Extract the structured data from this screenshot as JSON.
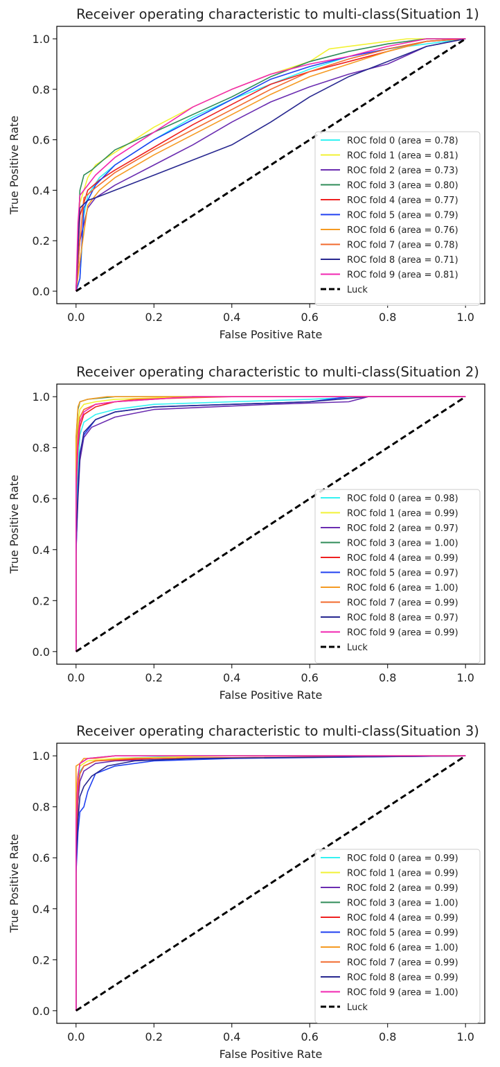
{
  "chart_data": [
    {
      "type": "line",
      "title": "Receiver operating characteristic to multi-class(Situation 1)",
      "xlabel": "False Positive Rate",
      "ylabel": "True Positive Rate",
      "xlim": [
        0,
        1
      ],
      "ylim": [
        0,
        1
      ],
      "xticks": [
        "0.0",
        "0.2",
        "0.4",
        "0.6",
        "0.8",
        "1.0"
      ],
      "yticks": [
        "0.0",
        "0.2",
        "0.4",
        "0.6",
        "0.8",
        "1.0"
      ],
      "legend_position": "lower-right",
      "grid": false,
      "series": [
        {
          "name": "ROC fold 0 (area = 0.78)",
          "color": "#33f2f2",
          "x": [
            0,
            0.01,
            0.02,
            0.03,
            0.06,
            0.1,
            0.2,
            0.3,
            0.4,
            0.5,
            0.6,
            0.7,
            0.8,
            0.9,
            1.0
          ],
          "y": [
            0,
            0.05,
            0.3,
            0.38,
            0.45,
            0.5,
            0.6,
            0.69,
            0.76,
            0.82,
            0.88,
            0.93,
            0.96,
            0.98,
            1.0
          ]
        },
        {
          "name": "ROC fold 1 (area = 0.81)",
          "color": "#f2f233",
          "x": [
            0,
            0.01,
            0.03,
            0.05,
            0.1,
            0.2,
            0.3,
            0.4,
            0.5,
            0.6,
            0.65,
            0.75,
            0.85,
            1.0
          ],
          "y": [
            0,
            0.35,
            0.45,
            0.5,
            0.55,
            0.65,
            0.73,
            0.8,
            0.86,
            0.91,
            0.96,
            0.98,
            1.0,
            1.0
          ]
        },
        {
          "name": "ROC fold 2 (area = 0.73)",
          "color": "#6a2cb0",
          "x": [
            0,
            0.01,
            0.03,
            0.05,
            0.1,
            0.2,
            0.3,
            0.4,
            0.5,
            0.6,
            0.7,
            0.8,
            0.9,
            1.0
          ],
          "y": [
            0,
            0.2,
            0.33,
            0.37,
            0.42,
            0.5,
            0.58,
            0.67,
            0.75,
            0.81,
            0.86,
            0.9,
            0.97,
            1.0
          ]
        },
        {
          "name": "ROC fold 3 (area = 0.80)",
          "color": "#2e8b57",
          "x": [
            0,
            0.01,
            0.02,
            0.04,
            0.1,
            0.2,
            0.3,
            0.4,
            0.5,
            0.6,
            0.7,
            0.8,
            0.9,
            1.0
          ],
          "y": [
            0,
            0.4,
            0.46,
            0.48,
            0.56,
            0.63,
            0.7,
            0.77,
            0.85,
            0.91,
            0.95,
            0.98,
            1.0,
            1.0
          ]
        },
        {
          "name": "ROC fold 4 (area = 0.77)",
          "color": "#ee2020",
          "x": [
            0,
            0.01,
            0.03,
            0.06,
            0.1,
            0.2,
            0.3,
            0.4,
            0.5,
            0.6,
            0.7,
            0.8,
            0.9,
            1.0
          ],
          "y": [
            0,
            0.3,
            0.4,
            0.44,
            0.48,
            0.57,
            0.66,
            0.74,
            0.82,
            0.87,
            0.91,
            0.95,
            0.99,
            1.0
          ]
        },
        {
          "name": "ROC fold 5 (area = 0.79)",
          "color": "#1f3ff0",
          "x": [
            0,
            0.01,
            0.02,
            0.05,
            0.1,
            0.2,
            0.3,
            0.4,
            0.5,
            0.6,
            0.7,
            0.8,
            0.9,
            1.0
          ],
          "y": [
            0,
            0.05,
            0.33,
            0.42,
            0.5,
            0.6,
            0.68,
            0.76,
            0.84,
            0.89,
            0.93,
            0.96,
            0.99,
            1.0
          ]
        },
        {
          "name": "ROC fold 6 (area = 0.76)",
          "color": "#f59a22",
          "x": [
            0,
            0.01,
            0.03,
            0.06,
            0.1,
            0.2,
            0.3,
            0.4,
            0.5,
            0.6,
            0.7,
            0.8,
            0.9,
            1.0
          ],
          "y": [
            0,
            0.12,
            0.34,
            0.4,
            0.45,
            0.54,
            0.62,
            0.7,
            0.78,
            0.85,
            0.9,
            0.95,
            0.99,
            1.0
          ]
        },
        {
          "name": "ROC fold 7 (area = 0.78)",
          "color": "#f26a2c",
          "x": [
            0,
            0.01,
            0.02,
            0.05,
            0.1,
            0.2,
            0.3,
            0.4,
            0.5,
            0.6,
            0.7,
            0.8,
            0.9,
            1.0
          ],
          "y": [
            0,
            0.2,
            0.37,
            0.41,
            0.47,
            0.56,
            0.64,
            0.72,
            0.8,
            0.87,
            0.92,
            0.96,
            0.99,
            1.0
          ]
        },
        {
          "name": "ROC fold 8 (area = 0.71)",
          "color": "#27278f",
          "x": [
            0,
            0.01,
            0.03,
            0.05,
            0.1,
            0.2,
            0.3,
            0.4,
            0.5,
            0.6,
            0.7,
            0.8,
            0.9,
            1.0
          ],
          "y": [
            0,
            0.33,
            0.36,
            0.37,
            0.4,
            0.46,
            0.52,
            0.58,
            0.67,
            0.77,
            0.85,
            0.91,
            0.97,
            1.0
          ]
        },
        {
          "name": "ROC fold 9 (area = 0.81)",
          "color": "#f226b0",
          "x": [
            0,
            0.005,
            0.01,
            0.03,
            0.05,
            0.1,
            0.2,
            0.3,
            0.4,
            0.5,
            0.6,
            0.7,
            0.8,
            0.9,
            1.0
          ],
          "y": [
            0,
            0.27,
            0.38,
            0.42,
            0.46,
            0.53,
            0.63,
            0.73,
            0.8,
            0.86,
            0.9,
            0.93,
            0.97,
            1.0,
            1.0
          ]
        },
        {
          "name": "Luck",
          "color": "#000000",
          "dashed": true,
          "x": [
            0,
            1
          ],
          "y": [
            0,
            1
          ]
        }
      ]
    },
    {
      "type": "line",
      "title": "Receiver operating characteristic to multi-class(Situation 2)",
      "xlabel": "False Positive Rate",
      "ylabel": "True Positive Rate",
      "xlim": [
        0,
        1
      ],
      "ylim": [
        0,
        1
      ],
      "xticks": [
        "0.0",
        "0.2",
        "0.4",
        "0.6",
        "0.8",
        "1.0"
      ],
      "yticks": [
        "0.0",
        "0.2",
        "0.4",
        "0.6",
        "0.8",
        "1.0"
      ],
      "legend_position": "lower-right",
      "grid": false,
      "series": [
        {
          "name": "ROC fold 0 (area = 0.98)",
          "color": "#33f2f2",
          "x": [
            0,
            0,
            0.005,
            0.01,
            0.02,
            0.05,
            0.1,
            0.2,
            0.4,
            0.6,
            0.75,
            1.0
          ],
          "y": [
            0,
            0.52,
            0.7,
            0.85,
            0.9,
            0.93,
            0.95,
            0.97,
            0.98,
            0.99,
            1.0,
            1.0
          ]
        },
        {
          "name": "ROC fold 1 (area = 0.99)",
          "color": "#f2f233",
          "x": [
            0,
            0,
            0.005,
            0.01,
            0.02,
            0.05,
            0.1,
            0.3,
            1.0
          ],
          "y": [
            0,
            0.75,
            0.9,
            0.95,
            0.97,
            0.98,
            0.99,
            1.0,
            1.0
          ]
        },
        {
          "name": "ROC fold 2 (area = 0.97)",
          "color": "#6a2cb0",
          "x": [
            0,
            0,
            0.005,
            0.01,
            0.02,
            0.04,
            0.1,
            0.2,
            0.5,
            0.7,
            0.75,
            1.0
          ],
          "y": [
            0,
            0.4,
            0.6,
            0.75,
            0.84,
            0.88,
            0.92,
            0.95,
            0.97,
            0.98,
            1.0,
            1.0
          ]
        },
        {
          "name": "ROC fold 3 (area = 1.00)",
          "color": "#2e8b57",
          "x": [
            0,
            0,
            0.005,
            0.01,
            0.03,
            0.1,
            1.0
          ],
          "y": [
            0,
            0.83,
            0.95,
            0.98,
            0.99,
            1.0,
            1.0
          ]
        },
        {
          "name": "ROC fold 4 (area = 0.99)",
          "color": "#ee2020",
          "x": [
            0,
            0,
            0.005,
            0.01,
            0.02,
            0.05,
            0.1,
            0.3,
            1.0
          ],
          "y": [
            0,
            0.62,
            0.8,
            0.88,
            0.93,
            0.96,
            0.98,
            1.0,
            1.0
          ]
        },
        {
          "name": "ROC fold 5 (area = 0.97)",
          "color": "#1f3ff0",
          "x": [
            0,
            0,
            0.005,
            0.01,
            0.02,
            0.05,
            0.1,
            0.2,
            0.4,
            0.6,
            0.7,
            1.0
          ],
          "y": [
            0,
            0.38,
            0.65,
            0.78,
            0.85,
            0.91,
            0.94,
            0.96,
            0.97,
            0.98,
            1.0,
            1.0
          ]
        },
        {
          "name": "ROC fold 6 (area = 1.00)",
          "color": "#f59a22",
          "x": [
            0,
            0,
            0.005,
            0.01,
            0.03,
            0.08,
            1.0
          ],
          "y": [
            0,
            0.84,
            0.96,
            0.98,
            0.99,
            1.0,
            1.0
          ]
        },
        {
          "name": "ROC fold 7 (area = 0.99)",
          "color": "#f26a2c",
          "x": [
            0,
            0,
            0.005,
            0.01,
            0.02,
            0.05,
            0.15,
            0.4,
            1.0
          ],
          "y": [
            0,
            0.68,
            0.86,
            0.92,
            0.95,
            0.97,
            0.99,
            1.0,
            1.0
          ]
        },
        {
          "name": "ROC fold 8 (area = 0.97)",
          "color": "#27278f",
          "x": [
            0,
            0,
            0.005,
            0.01,
            0.02,
            0.05,
            0.1,
            0.2,
            0.4,
            0.6,
            0.75,
            1.0
          ],
          "y": [
            0,
            0.42,
            0.62,
            0.77,
            0.86,
            0.91,
            0.94,
            0.96,
            0.97,
            0.98,
            1.0,
            1.0
          ]
        },
        {
          "name": "ROC fold 9 (area = 0.99)",
          "color": "#f226b0",
          "x": [
            0,
            0,
            0.005,
            0.01,
            0.02,
            0.05,
            0.1,
            0.3,
            1.0
          ],
          "y": [
            0,
            0.66,
            0.83,
            0.9,
            0.94,
            0.97,
            0.98,
            1.0,
            1.0
          ]
        },
        {
          "name": "Luck",
          "color": "#000000",
          "dashed": true,
          "x": [
            0,
            1
          ],
          "y": [
            0,
            1
          ]
        }
      ]
    },
    {
      "type": "line",
      "title": "Receiver operating characteristic to multi-class(Situation 3)",
      "xlabel": "False Positive Rate",
      "ylabel": "True Positive Rate",
      "xlim": [
        0,
        1
      ],
      "ylim": [
        0,
        1
      ],
      "xticks": [
        "0.0",
        "0.2",
        "0.4",
        "0.6",
        "0.8",
        "1.0"
      ],
      "yticks": [
        "0.0",
        "0.2",
        "0.4",
        "0.6",
        "0.8",
        "1.0"
      ],
      "legend_position": "lower-right",
      "grid": false,
      "series": [
        {
          "name": "ROC fold 0 (area = 0.99)",
          "color": "#33f2f2",
          "x": [
            0,
            0,
            0.005,
            0.01,
            0.02,
            0.05,
            0.1,
            0.3,
            1.0
          ],
          "y": [
            0,
            0.8,
            0.9,
            0.94,
            0.96,
            0.98,
            0.99,
            1.0,
            1.0
          ]
        },
        {
          "name": "ROC fold 1 (area = 0.99)",
          "color": "#f2f233",
          "x": [
            0,
            0,
            0.005,
            0.01,
            0.03,
            0.1,
            0.4,
            1.0
          ],
          "y": [
            0,
            0.85,
            0.93,
            0.96,
            0.98,
            0.99,
            1.0,
            1.0
          ]
        },
        {
          "name": "ROC fold 2 (area = 0.99)",
          "color": "#6a2cb0",
          "x": [
            0,
            0,
            0.005,
            0.01,
            0.02,
            0.05,
            0.1,
            0.3,
            1.0
          ],
          "y": [
            0,
            0.6,
            0.82,
            0.9,
            0.94,
            0.97,
            0.98,
            0.99,
            1.0
          ]
        },
        {
          "name": "ROC fold 3 (area = 1.00)",
          "color": "#2e8b57",
          "x": [
            0,
            0,
            0.005,
            0.01,
            0.03,
            0.1,
            1.0
          ],
          "y": [
            0,
            0.72,
            0.92,
            0.97,
            0.99,
            1.0,
            1.0
          ]
        },
        {
          "name": "ROC fold 4 (area = 0.99)",
          "color": "#ee2020",
          "x": [
            0,
            0,
            0.005,
            0.01,
            0.02,
            0.05,
            0.2,
            1.0
          ],
          "y": [
            0,
            0.66,
            0.86,
            0.93,
            0.96,
            0.98,
            0.99,
            1.0
          ]
        },
        {
          "name": "ROC fold 5 (area = 0.99)",
          "color": "#1f3ff0",
          "x": [
            0,
            0,
            0.005,
            0.01,
            0.02,
            0.03,
            0.05,
            0.1,
            0.2,
            0.4,
            1.0
          ],
          "y": [
            0,
            0.54,
            0.7,
            0.78,
            0.8,
            0.86,
            0.93,
            0.96,
            0.98,
            0.99,
            1.0
          ]
        },
        {
          "name": "ROC fold 6 (area = 1.00)",
          "color": "#f59a22",
          "x": [
            0,
            0,
            0.01,
            0.02,
            0.05,
            0.1,
            1.0
          ],
          "y": [
            0,
            0.96,
            0.97,
            0.99,
            0.99,
            1.0,
            1.0
          ]
        },
        {
          "name": "ROC fold 7 (area = 0.99)",
          "color": "#f26a2c",
          "x": [
            0,
            0,
            0.005,
            0.01,
            0.02,
            0.05,
            0.15,
            1.0
          ],
          "y": [
            0,
            0.7,
            0.88,
            0.93,
            0.96,
            0.98,
            0.99,
            1.0
          ]
        },
        {
          "name": "ROC fold 8 (area = 0.99)",
          "color": "#27278f",
          "x": [
            0,
            0,
            0.005,
            0.01,
            0.02,
            0.04,
            0.08,
            0.15,
            0.3,
            1.0
          ],
          "y": [
            0,
            0.58,
            0.75,
            0.84,
            0.88,
            0.92,
            0.96,
            0.98,
            0.99,
            1.0
          ]
        },
        {
          "name": "ROC fold 9 (area = 1.00)",
          "color": "#f226b0",
          "x": [
            0,
            0,
            0.005,
            0.01,
            0.03,
            0.1,
            1.0
          ],
          "y": [
            0,
            0.74,
            0.92,
            0.97,
            0.99,
            1.0,
            1.0
          ]
        },
        {
          "name": "Luck",
          "color": "#000000",
          "dashed": true,
          "x": [
            0,
            1
          ],
          "y": [
            0,
            1
          ]
        }
      ]
    }
  ]
}
